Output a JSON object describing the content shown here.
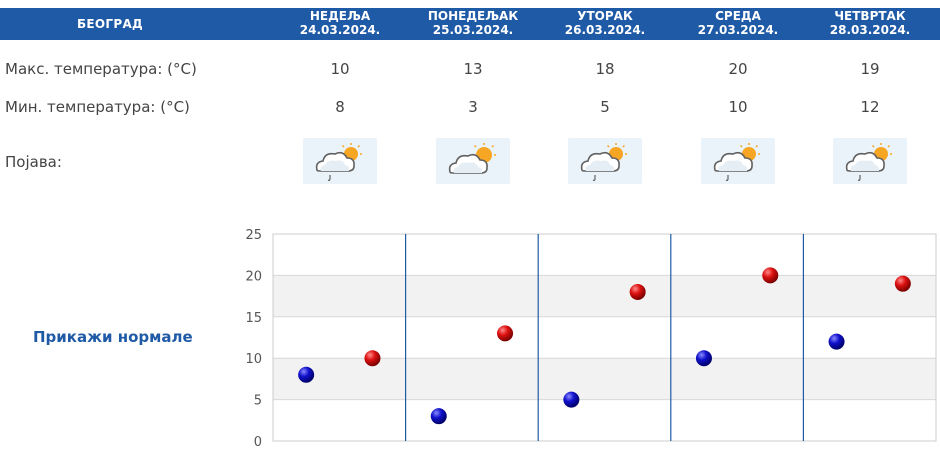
{
  "table": {
    "city": "БЕОГРАД",
    "days": [
      {
        "name": "НЕДЕЉА",
        "date": "24.03.2024.",
        "max": "10",
        "min": "8",
        "icon": "partly-cloudy-rain-icon"
      },
      {
        "name": "ПОНЕДЕЉАК",
        "date": "25.03.2024.",
        "max": "13",
        "min": "3",
        "icon": "partly-cloudy-icon"
      },
      {
        "name": "УТОРАК",
        "date": "26.03.2024.",
        "max": "18",
        "min": "5",
        "icon": "partly-cloudy-rain-icon"
      },
      {
        "name": "СРЕДА",
        "date": "27.03.2024.",
        "max": "20",
        "min": "10",
        "icon": "partly-cloudy-rain-icon"
      },
      {
        "name": "ЧЕТВРТАК",
        "date": "28.03.2024.",
        "max": "19",
        "min": "12",
        "icon": "partly-cloudy-rain-icon"
      }
    ],
    "labels": {
      "max_temp": "Макс. температура: (°C)",
      "min_temp": "Мин. температура: (°C)",
      "phenomenon": "Појава:"
    }
  },
  "normals_link": "Прикажи нормале",
  "colors": {
    "header": "#1f5aa6",
    "max_marker": "#cc0000",
    "min_marker": "#0000bb",
    "grid_band": "#f2f2f2",
    "separator": "#1f5aa6"
  },
  "chart_data": {
    "type": "scatter",
    "categories": [
      "24.03.2024.",
      "25.03.2024.",
      "26.03.2024.",
      "27.03.2024.",
      "28.03.2024."
    ],
    "series": [
      {
        "key": "min",
        "values": [
          8,
          3,
          5,
          10,
          12
        ]
      },
      {
        "key": "max",
        "values": [
          10,
          13,
          18,
          20,
          19
        ]
      }
    ],
    "ylim": [
      0,
      25
    ],
    "yticks": [
      "0",
      "5",
      "10",
      "15",
      "20",
      "25"
    ],
    "grid": true
  }
}
